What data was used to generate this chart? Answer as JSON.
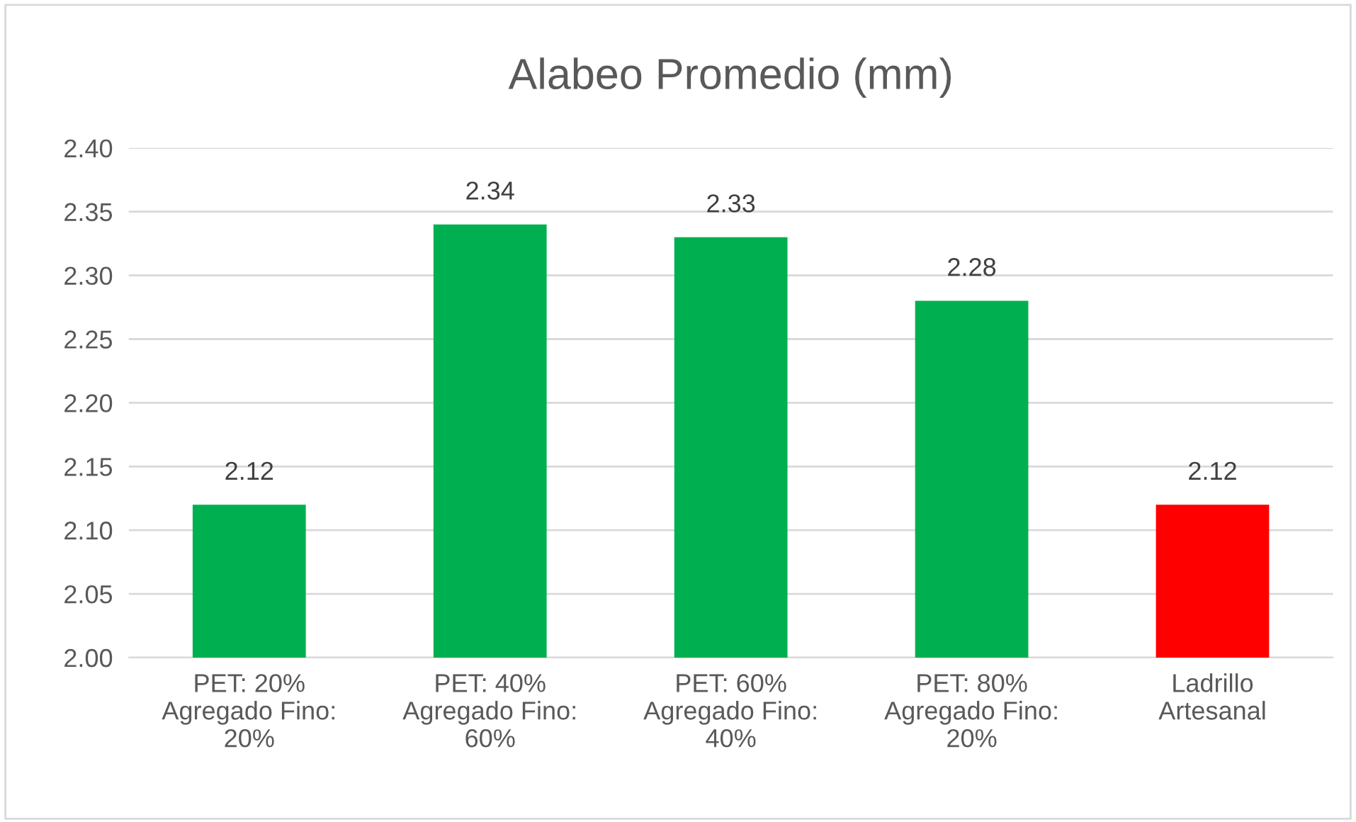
{
  "chart_data": {
    "type": "bar",
    "title": "Alabeo Promedio (mm)",
    "categories": [
      "PET: 20%\nAgregado Fino:\n20%",
      "PET: 40%\nAgregado Fino:\n60%",
      "PET: 60%\nAgregado Fino:\n40%",
      "PET: 80%\nAgregado Fino:\n20%",
      "Ladrillo\nArtesanal"
    ],
    "values": [
      2.12,
      2.34,
      2.33,
      2.28,
      2.12
    ],
    "colors": [
      "#00b050",
      "#00b050",
      "#00b050",
      "#00b050",
      "#ff0000"
    ],
    "ylim": [
      2.0,
      2.4
    ],
    "yticks": [
      {
        "value": 2.0,
        "label": "2.00"
      },
      {
        "value": 2.05,
        "label": "2.05"
      },
      {
        "value": 2.1,
        "label": "2.10"
      },
      {
        "value": 2.15,
        "label": "2.15"
      },
      {
        "value": 2.2,
        "label": "2.20"
      },
      {
        "value": 2.25,
        "label": "2.25"
      },
      {
        "value": 2.3,
        "label": "2.30"
      },
      {
        "value": 2.35,
        "label": "2.35"
      },
      {
        "value": 2.4,
        "label": "2.40"
      }
    ],
    "grid": "y",
    "data_labels": true
  }
}
